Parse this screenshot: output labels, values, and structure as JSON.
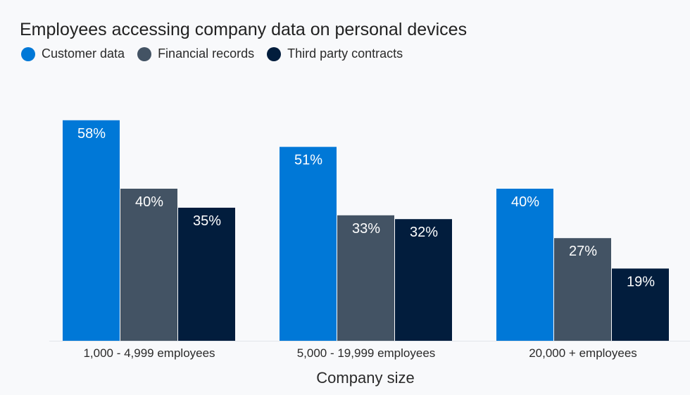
{
  "chart_data": {
    "type": "bar",
    "title": "Employees accessing company data on personal devices",
    "xlabel": "Company size",
    "ylabel": "",
    "categories": [
      "1,000 - 4,999 employees",
      "5,000 - 19,999 employees",
      "20,000 + employees"
    ],
    "series": [
      {
        "name": "Customer data",
        "values": [
          58,
          51,
          40
        ],
        "labels": [
          "58%",
          "51%",
          "40%"
        ],
        "color": "#0078d7"
      },
      {
        "name": "Financial records",
        "values": [
          40,
          33,
          27
        ],
        "labels": [
          "40%",
          "33%",
          "27%"
        ],
        "color": "#435364"
      },
      {
        "name": "Third party contracts",
        "values": [
          35,
          32,
          19
        ],
        "labels": [
          "35%",
          "32%",
          "19%"
        ],
        "color": "#021d3d"
      }
    ],
    "ylim": [
      0,
      60
    ],
    "grid": false,
    "legend": "top-left",
    "value_label_color": "#ffffff"
  }
}
